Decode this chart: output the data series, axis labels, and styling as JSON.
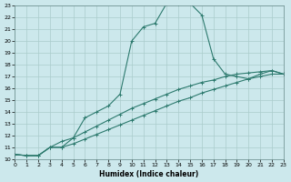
{
  "xlabel": "Humidex (Indice chaleur)",
  "background_color": "#cce8ec",
  "grid_color": "#aacccc",
  "line_color": "#2d7a6e",
  "xlim": [
    0,
    23
  ],
  "ylim": [
    10,
    23
  ],
  "xticks": [
    0,
    1,
    2,
    3,
    4,
    5,
    6,
    7,
    8,
    9,
    10,
    11,
    12,
    13,
    14,
    15,
    16,
    17,
    18,
    19,
    20,
    21,
    22,
    23
  ],
  "yticks": [
    10,
    11,
    12,
    13,
    14,
    15,
    16,
    17,
    18,
    19,
    20,
    21,
    22,
    23
  ],
  "line1_x": [
    0,
    1,
    2,
    3,
    4,
    5,
    6,
    7,
    8,
    9,
    10,
    11,
    12,
    13,
    14,
    15,
    16,
    17,
    18,
    19,
    20,
    21,
    22,
    23
  ],
  "line1_y": [
    10.4,
    10.3,
    10.3,
    11.0,
    11.0,
    11.8,
    13.5,
    14.0,
    14.5,
    15.5,
    20.0,
    21.2,
    21.5,
    23.2,
    23.2,
    23.2,
    22.2,
    18.5,
    17.2,
    17.0,
    16.8,
    17.2,
    17.5,
    17.2
  ],
  "line2_x": [
    0,
    1,
    2,
    3,
    4,
    5,
    6,
    7,
    8,
    9,
    10,
    11,
    12,
    13,
    14,
    15,
    16,
    17,
    18,
    19,
    20,
    21,
    22,
    23
  ],
  "line2_y": [
    10.4,
    10.3,
    10.3,
    11.0,
    11.5,
    11.8,
    12.3,
    12.8,
    13.3,
    13.8,
    14.3,
    14.7,
    15.1,
    15.5,
    15.9,
    16.2,
    16.5,
    16.7,
    17.0,
    17.2,
    17.3,
    17.4,
    17.5,
    17.2
  ],
  "line3_x": [
    0,
    1,
    2,
    3,
    4,
    5,
    6,
    7,
    8,
    9,
    10,
    11,
    12,
    13,
    14,
    15,
    16,
    17,
    18,
    19,
    20,
    21,
    22,
    23
  ],
  "line3_y": [
    10.4,
    10.3,
    10.3,
    11.0,
    11.0,
    11.3,
    11.7,
    12.1,
    12.5,
    12.9,
    13.3,
    13.7,
    14.1,
    14.5,
    14.9,
    15.2,
    15.6,
    15.9,
    16.2,
    16.5,
    16.8,
    17.0,
    17.2,
    17.2
  ]
}
